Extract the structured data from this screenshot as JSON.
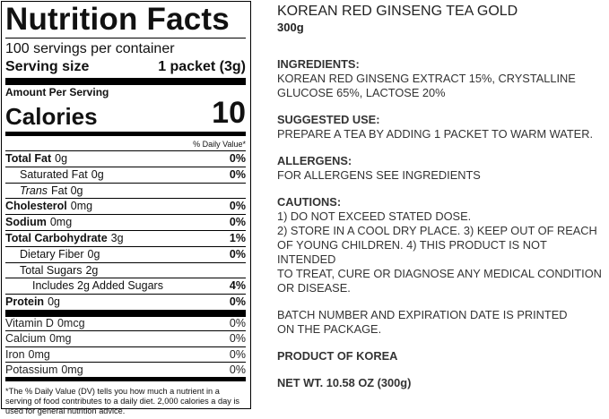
{
  "nutrition_facts": {
    "title": "Nutrition Facts",
    "servings": "100 servings per container",
    "serving_size_label": "Serving size",
    "serving_size": "1 packet (3g)",
    "amount_per_serving": "Amount Per Serving",
    "calories_label": "Calories",
    "calories": "10",
    "daily_value_header": "% Daily Value*",
    "nutrients": [
      {
        "name": "Total Fat",
        "amount": "0g",
        "dv": "0%"
      },
      {
        "name": "Saturated Fat",
        "amount": "0g",
        "dv": "0%"
      },
      {
        "name": "Trans",
        "amount": "Fat 0g"
      },
      {
        "name": "Cholesterol",
        "amount": "0mg",
        "dv": "0%"
      },
      {
        "name": "Sodium",
        "amount": "0mg",
        "dv": "0%"
      },
      {
        "name": "Total Carbohydrate",
        "amount": "3g",
        "dv": "1%"
      },
      {
        "name": "Dietary Fiber",
        "amount": "0g",
        "dv": "0%"
      },
      {
        "name": "Total Sugars",
        "amount": "2g"
      },
      {
        "name": "Includes 2g Added Sugars",
        "dv": "4%"
      },
      {
        "name": "Protein",
        "amount": "0g",
        "dv": "0%"
      }
    ],
    "vitamins": [
      {
        "name": "Vitamin D",
        "amount": "0mcg",
        "dv": "0%"
      },
      {
        "name": "Calcium",
        "amount": "0mg",
        "dv": "0%"
      },
      {
        "name": "Iron",
        "amount": "0mg",
        "dv": "0%"
      },
      {
        "name": "Potassium",
        "amount": "0mg",
        "dv": "0%"
      }
    ],
    "footnote": "*The % Daily Value (DV) tells you how much a nutrient in a serving of food contributes to a daily diet. 2,000 calories a day is used for general nutrition advice."
  },
  "product": {
    "name": "KOREAN RED GINSENG TEA GOLD",
    "size": "300g",
    "sections": [
      {
        "heading": "INGREDIENTS:",
        "lines": [
          "KOREAN RED GINSENG EXTRACT 15%, CRYSTALLINE",
          "GLUCOSE 65%, LACTOSE 20%"
        ]
      },
      {
        "heading": "SUGGESTED USE:",
        "lines": [
          "PREPARE A TEA BY ADDING 1 PACKET TO WARM WATER."
        ]
      },
      {
        "heading": "ALLERGENS:",
        "lines": [
          "FOR ALLERGENS SEE INGREDIENTS"
        ]
      },
      {
        "heading": "CAUTIONS:",
        "lines": [
          "1) DO NOT EXCEED STATED DOSE.",
          "2) STORE IN A COOL DRY PLACE. 3) KEEP OUT OF REACH",
          "OF YOUNG CHILDREN. 4) THIS PRODUCT IS NOT INTENDED",
          "TO TREAT, CURE OR DIAGNOSE ANY MEDICAL CONDITION",
          "OR DISEASE."
        ]
      },
      {
        "lines": [
          "BATCH NUMBER AND EXPIRATION DATE IS PRINTED",
          "ON THE PACKAGE."
        ]
      },
      {
        "heading": "PRODUCT OF KOREA"
      },
      {
        "heading": "NET WT. 10.58 OZ (300g)"
      }
    ]
  }
}
